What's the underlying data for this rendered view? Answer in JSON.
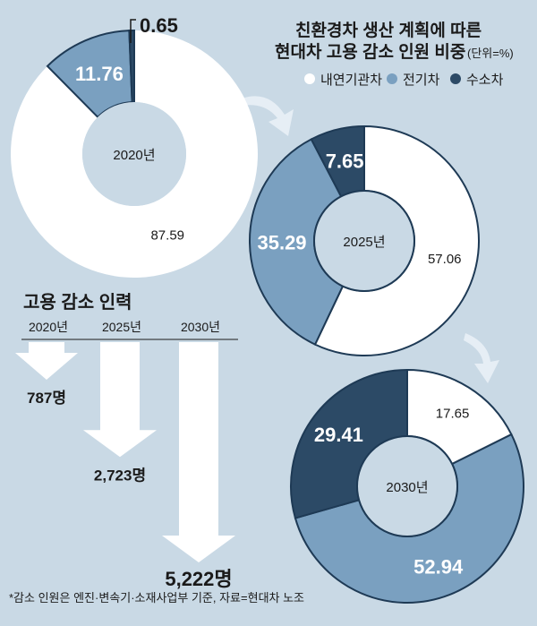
{
  "title_line1": "친환경차 생산 계획에 따른",
  "title_line2": "현대차 고용 감소 인원 비중",
  "unit": "(단위=%)",
  "legend": [
    {
      "name": "내연기관차",
      "color": "#ffffff"
    },
    {
      "name": "전기차",
      "color": "#7aa0c0"
    },
    {
      "name": "수소차",
      "color": "#2c4a66"
    }
  ],
  "chart_data": [
    {
      "type": "pie",
      "center_label": "2020년",
      "categories": [
        "내연기관차",
        "전기차",
        "수소차"
      ],
      "values": [
        87.59,
        11.76,
        0.65
      ],
      "value_labels": [
        "87.59",
        "11.76",
        "0.65"
      ]
    },
    {
      "type": "pie",
      "center_label": "2025년",
      "categories": [
        "내연기관차",
        "전기차",
        "수소차"
      ],
      "values": [
        57.06,
        35.29,
        7.65
      ],
      "value_labels": [
        "57.06",
        "35.29",
        "7.65"
      ]
    },
    {
      "type": "pie",
      "center_label": "2030년",
      "categories": [
        "내연기관차",
        "전기차",
        "수소차"
      ],
      "values": [
        17.65,
        52.94,
        29.41
      ],
      "value_labels": [
        "17.65",
        "52.94",
        "29.41"
      ]
    },
    {
      "type": "bar",
      "title": "고용 감소 인력",
      "categories": [
        "2020년",
        "2025년",
        "2030년"
      ],
      "values": [
        787,
        2723,
        5222
      ],
      "value_labels": [
        "787",
        "2,723",
        "5,222"
      ],
      "unit": "명"
    }
  ],
  "footnote": "*감소 인원은 엔진·변속기·소재사업부 기준, 자료=현대차 노조"
}
